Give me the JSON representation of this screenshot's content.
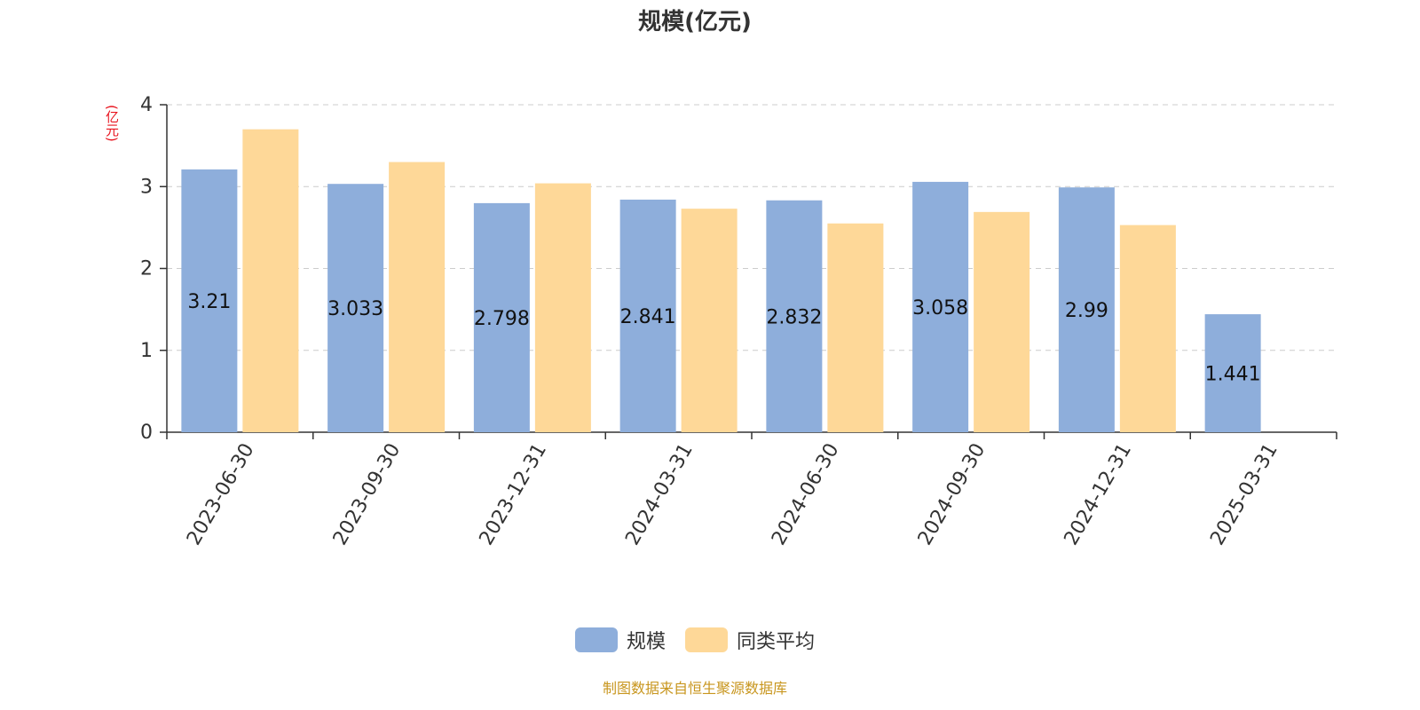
{
  "chart_data": {
    "type": "bar",
    "title": "规模(亿元)",
    "ylabel": "(亿元)",
    "ylim": [
      0,
      4
    ],
    "yticks": [
      0,
      1,
      2,
      3,
      4
    ],
    "grid": "horizontal-dashed",
    "legend_position": "bottom-center",
    "categories": [
      "2023-06-30",
      "2023-09-30",
      "2023-12-31",
      "2024-03-31",
      "2024-06-30",
      "2024-09-30",
      "2024-12-31",
      "2025-03-31"
    ],
    "series": [
      {
        "name": "规模",
        "color": "#8eaedb",
        "values": [
          3.21,
          3.033,
          2.798,
          2.841,
          2.832,
          3.058,
          2.99,
          1.441
        ],
        "labels": [
          "3.21",
          "3.033",
          "2.798",
          "2.841",
          "2.832",
          "3.058",
          "2.99",
          "1.441"
        ]
      },
      {
        "name": "同类平均",
        "color": "#fed898",
        "values": [
          3.7,
          3.3,
          3.04,
          2.73,
          2.55,
          2.69,
          2.53,
          null
        ]
      }
    ]
  },
  "colors": {
    "unit_label": "#e8141e",
    "axis": "#333333",
    "grid": "#cccccc",
    "source_note": "#c8961e"
  },
  "source_note": "制图数据来自恒生聚源数据库"
}
